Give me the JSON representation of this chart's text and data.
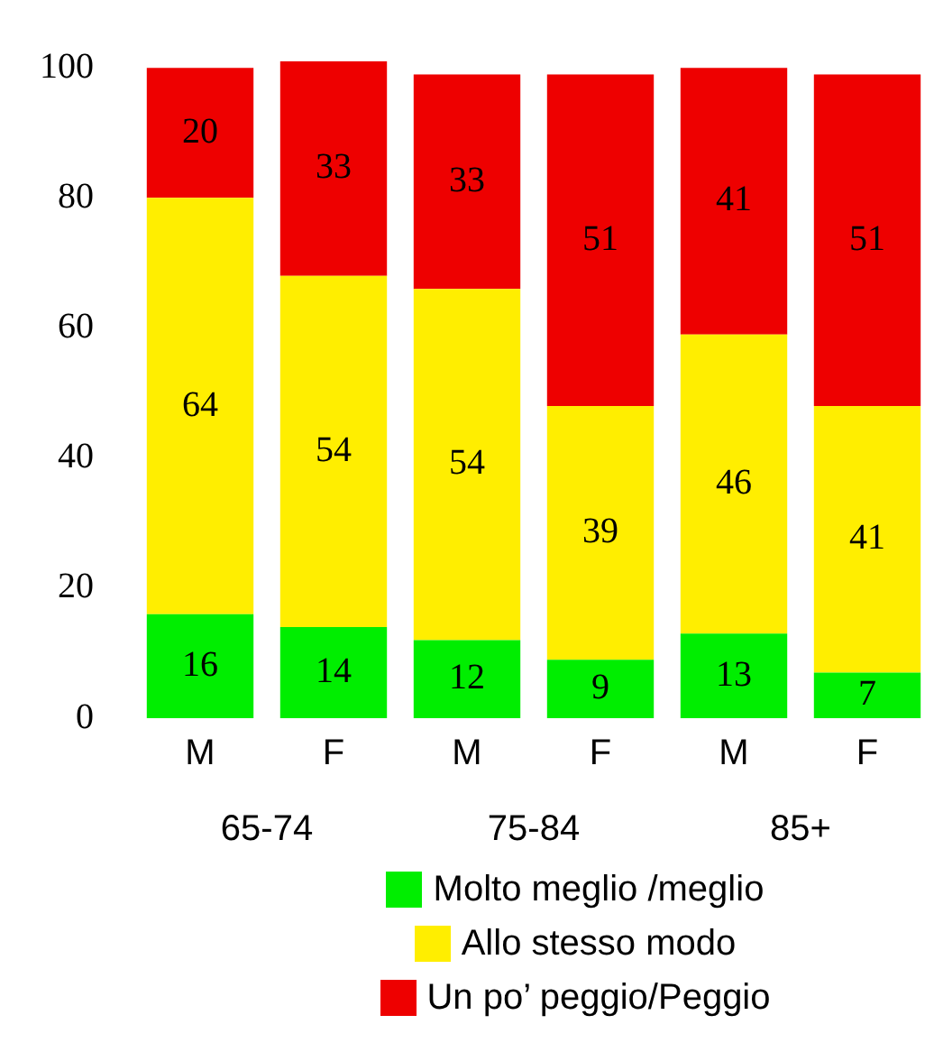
{
  "chart_data": {
    "type": "bar",
    "stacked": true,
    "categories": [
      "M",
      "F",
      "M",
      "F",
      "M",
      "F"
    ],
    "series": [
      {
        "name": "Molto meglio /meglio",
        "color": "#00ee00",
        "values": [
          16,
          14,
          12,
          9,
          13,
          7
        ]
      },
      {
        "name": "Allo stesso modo",
        "color": "#ffee00",
        "values": [
          64,
          54,
          54,
          39,
          46,
          41
        ]
      },
      {
        "name": "Un po’ peggio/Peggio",
        "color": "#ee0000",
        "values": [
          20,
          33,
          33,
          51,
          41,
          51
        ]
      }
    ],
    "ylim": [
      0,
      101
    ],
    "yticks": [
      0,
      20,
      40,
      60,
      80,
      100
    ],
    "grid": false,
    "data_labels": true,
    "legend": "bottom",
    "annotations": [
      "65-74",
      "75-84",
      "85+"
    ]
  }
}
